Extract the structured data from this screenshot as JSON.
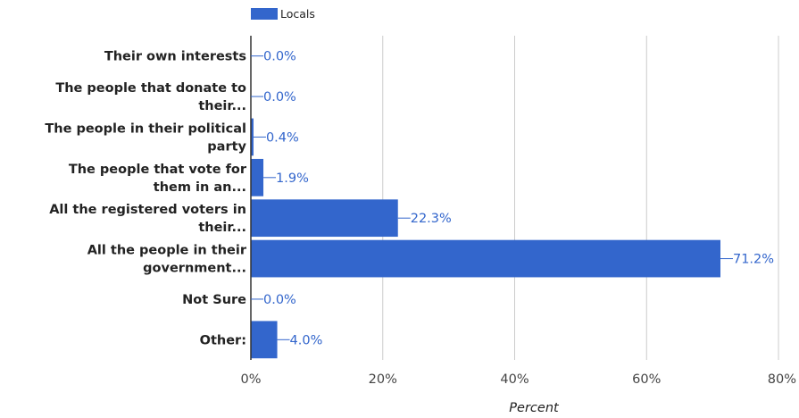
{
  "chart_data": {
    "type": "bar",
    "orientation": "horizontal",
    "categories": [
      [
        "Their own interests"
      ],
      [
        "The people that donate to",
        "their..."
      ],
      [
        "The people in their political",
        "party"
      ],
      [
        "The people that vote for",
        "them in an..."
      ],
      [
        "All the registered voters in",
        "their..."
      ],
      [
        "All the people in their",
        "government..."
      ],
      [
        "Not Sure"
      ],
      [
        "Other:"
      ]
    ],
    "series": [
      {
        "name": "Locals",
        "values": [
          0.0,
          0.0,
          0.4,
          1.9,
          22.3,
          71.2,
          0.0,
          4.0
        ],
        "value_labels": [
          "0.0%",
          "0.0%",
          "0.4%",
          "1.9%",
          "22.3%",
          "71.2%",
          "0.0%",
          "4.0%"
        ]
      }
    ],
    "xlabel": "Percent",
    "xlim": [
      0,
      80
    ],
    "xticks": [
      0,
      20,
      40,
      60,
      80
    ],
    "xtick_labels": [
      "0%",
      "20%",
      "40%",
      "60%",
      "80%"
    ],
    "grid": true,
    "legend_position": "top-left",
    "colors": {
      "bar": "#3366cc",
      "grid": "#cccccc",
      "axis": "#333333"
    }
  }
}
